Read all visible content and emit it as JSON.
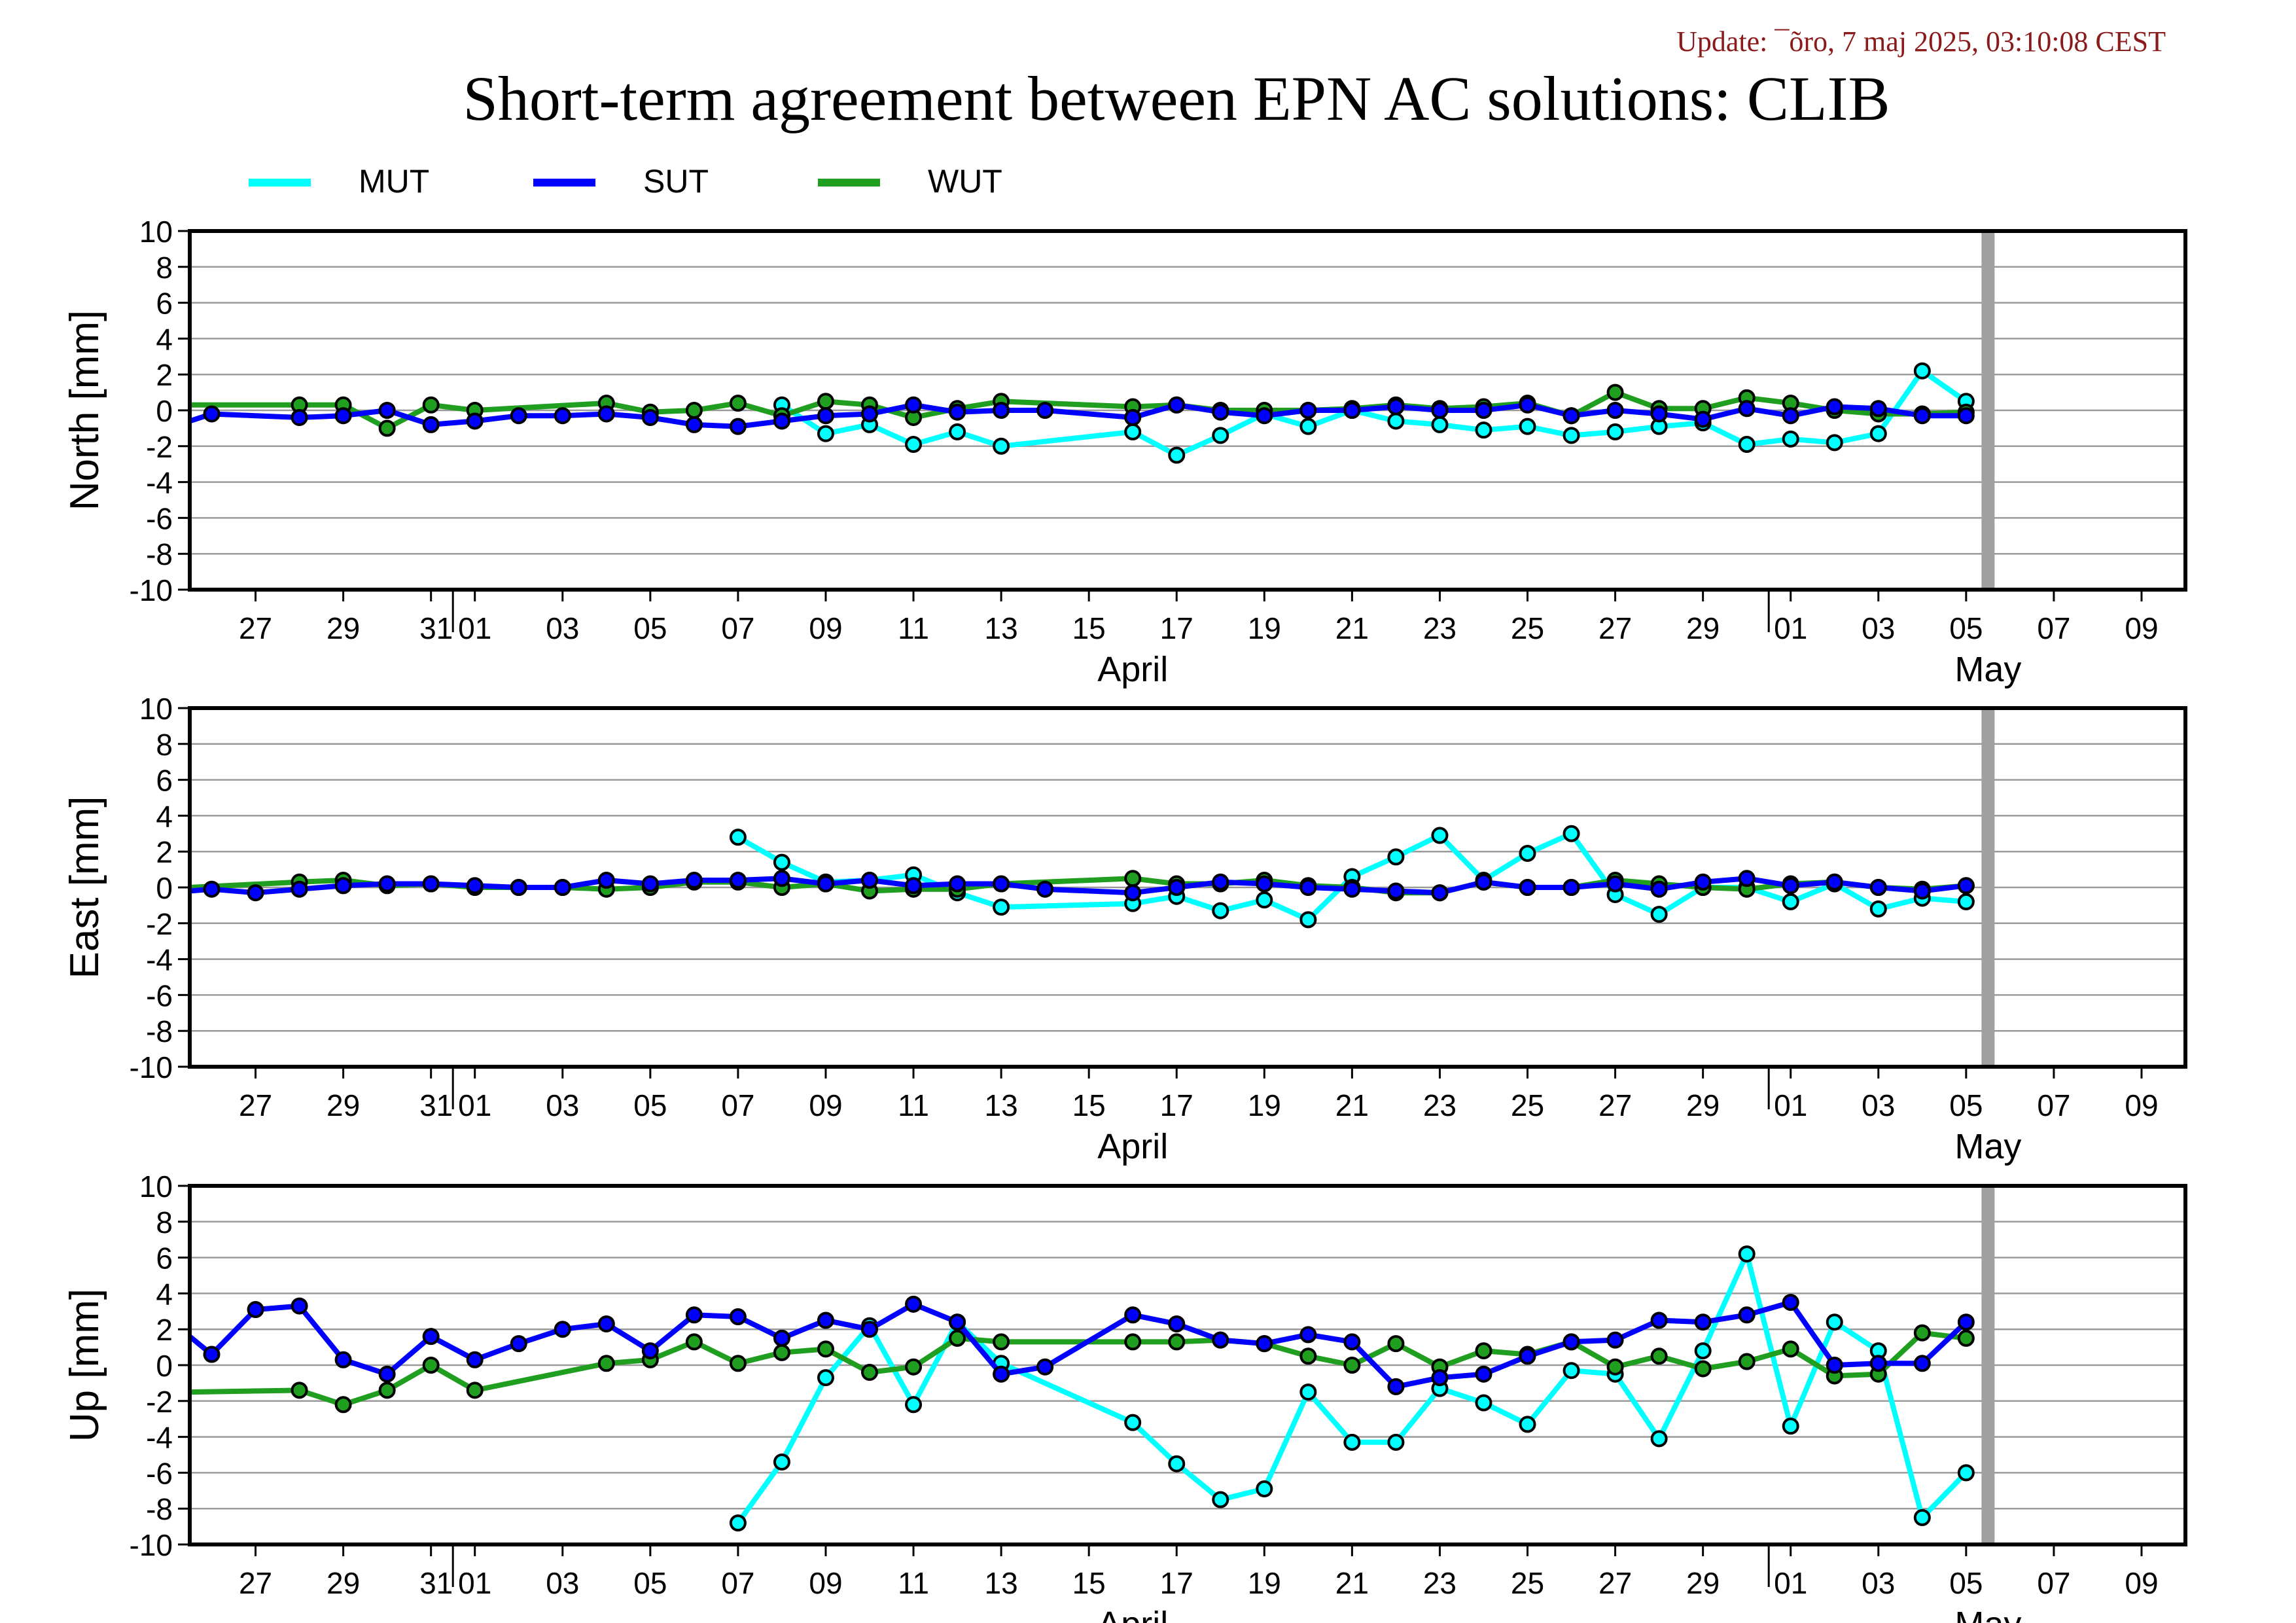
{
  "update_text": "Update: ¯õro, 7 maj 2025, 03:10:08 CEST",
  "title": "Short-term agreement between EPN AC solutions: CLIB",
  "colors": {
    "MUT": "#00ffff",
    "SUT": "#0000ff",
    "WUT": "#1f9e1f",
    "update": "#8b1a1a",
    "now_bar": "#a0a0a0"
  },
  "legend": [
    "MUT",
    "SUT",
    "WUT"
  ],
  "x_axis": {
    "ticks": [
      {
        "day": 27,
        "label": "27"
      },
      {
        "day": 29,
        "label": "29"
      },
      {
        "day": 31,
        "label": "31"
      },
      {
        "day": 32,
        "label": "01"
      },
      {
        "day": 34,
        "label": "03"
      },
      {
        "day": 36,
        "label": "05"
      },
      {
        "day": 38,
        "label": "07"
      },
      {
        "day": 40,
        "label": "09"
      },
      {
        "day": 42,
        "label": "11"
      },
      {
        "day": 44,
        "label": "13"
      },
      {
        "day": 46,
        "label": "15"
      },
      {
        "day": 48,
        "label": "17"
      },
      {
        "day": 50,
        "label": "19"
      },
      {
        "day": 52,
        "label": "21"
      },
      {
        "day": 54,
        "label": "23"
      },
      {
        "day": 56,
        "label": "25"
      },
      {
        "day": 58,
        "label": "27"
      },
      {
        "day": 60,
        "label": "29"
      },
      {
        "day": 62,
        "label": "01"
      },
      {
        "day": 64,
        "label": "03"
      },
      {
        "day": 66,
        "label": "05"
      },
      {
        "day": 68,
        "label": "07"
      },
      {
        "day": 70,
        "label": "09"
      }
    ],
    "month_labels": [
      {
        "day": 47,
        "label": "April"
      },
      {
        "day": 66.5,
        "label": "May"
      }
    ],
    "month_boundaries": [
      31.5,
      61.5
    ],
    "range": [
      25.5,
      71
    ],
    "now_day": 66.5,
    "note": "x values are day numbers counted from 1 March 2025 (32 = 01 April, 62 = 01 May)"
  },
  "chart_data": [
    {
      "type": "line",
      "ylabel": "North [mm]",
      "ylim": [
        -10,
        10
      ],
      "yticks": [
        10,
        8,
        6,
        4,
        2,
        0,
        -2,
        -4,
        -6,
        -8,
        -10
      ],
      "series": [
        {
          "name": "MUT",
          "x": [
            39,
            40,
            41,
            42,
            43,
            44,
            47,
            48,
            49,
            50,
            51,
            52,
            53,
            54,
            55,
            56,
            57,
            58,
            59,
            60,
            61,
            62,
            63,
            64,
            65,
            66
          ],
          "values": [
            0.3,
            -1.3,
            -0.8,
            -1.9,
            -1.2,
            -2.0,
            -1.2,
            -2.5,
            -1.4,
            -0.2,
            -0.9,
            0.0,
            -0.6,
            -0.8,
            -1.1,
            -0.9,
            -1.4,
            -1.2,
            -0.9,
            -0.7,
            -1.9,
            -1.6,
            -1.8,
            -1.3,
            2.2,
            0.5
          ]
        },
        {
          "name": "SUT",
          "x": [
            25.5,
            26,
            28,
            29,
            30,
            31,
            32,
            33,
            34,
            35,
            36,
            37,
            38,
            39,
            40,
            41,
            42,
            43,
            44,
            45,
            47,
            48,
            49,
            50,
            51,
            52,
            53,
            54,
            55,
            56,
            57,
            58,
            59,
            60,
            61,
            62,
            63,
            64,
            65,
            66
          ],
          "values": [
            -0.6,
            -0.2,
            -0.4,
            -0.3,
            0.0,
            -0.8,
            -0.6,
            -0.3,
            -0.3,
            -0.2,
            -0.4,
            -0.8,
            -0.9,
            -0.6,
            -0.3,
            -0.2,
            0.3,
            -0.1,
            0.0,
            0.0,
            -0.4,
            0.3,
            -0.1,
            -0.3,
            0.0,
            0.0,
            0.2,
            0.0,
            0.0,
            0.3,
            -0.3,
            0.0,
            -0.2,
            -0.5,
            0.1,
            -0.3,
            0.2,
            0.1,
            -0.3,
            -0.3
          ]
        },
        {
          "name": "WUT",
          "x": [
            25.5,
            28,
            29,
            30,
            31,
            32,
            35,
            36,
            37,
            38,
            39,
            40,
            41,
            42,
            43,
            44,
            47,
            48,
            49,
            50,
            51,
            52,
            53,
            54,
            55,
            56,
            57,
            58,
            59,
            60,
            61,
            62,
            63,
            64,
            65,
            66
          ],
          "values": [
            0.3,
            0.3,
            0.3,
            -1.0,
            0.3,
            0.0,
            0.4,
            -0.1,
            0.0,
            0.4,
            -0.3,
            0.5,
            0.3,
            -0.4,
            0.1,
            0.5,
            0.2,
            0.3,
            0.0,
            0.0,
            0.0,
            0.1,
            0.3,
            0.1,
            0.2,
            0.4,
            -0.3,
            1.0,
            0.1,
            0.1,
            0.7,
            0.4,
            0.0,
            -0.2,
            -0.2,
            -0.1
          ]
        }
      ]
    },
    {
      "type": "line",
      "ylabel": "East [mm]",
      "ylim": [
        -10,
        10
      ],
      "yticks": [
        10,
        8,
        6,
        4,
        2,
        0,
        -2,
        -4,
        -6,
        -8,
        -10
      ],
      "series": [
        {
          "name": "MUT",
          "x": [
            38,
            39,
            40,
            41,
            42,
            43,
            44,
            47,
            48,
            49,
            50,
            51,
            52,
            53,
            54,
            55,
            56,
            57,
            58,
            59,
            60,
            61,
            62,
            63,
            64,
            65,
            66
          ],
          "values": [
            2.8,
            1.4,
            0.3,
            0.4,
            0.7,
            -0.3,
            -1.1,
            -0.9,
            -0.5,
            -1.3,
            -0.7,
            -1.8,
            0.6,
            1.7,
            2.9,
            0.4,
            1.9,
            3.0,
            -0.4,
            -1.5,
            0.0,
            0.0,
            -0.8,
            0.2,
            -1.2,
            -0.6,
            -0.8
          ]
        },
        {
          "name": "SUT",
          "x": [
            25.5,
            26,
            27,
            28,
            29,
            30,
            31,
            32,
            33,
            34,
            35,
            36,
            37,
            38,
            39,
            40,
            41,
            42,
            43,
            44,
            45,
            47,
            48,
            49,
            50,
            51,
            52,
            53,
            54,
            55,
            56,
            57,
            58,
            59,
            60,
            61,
            62,
            63,
            64,
            65,
            66
          ],
          "values": [
            -0.2,
            -0.1,
            -0.3,
            -0.1,
            0.1,
            0.2,
            0.2,
            0.1,
            0.0,
            0.0,
            0.4,
            0.2,
            0.4,
            0.4,
            0.5,
            0.2,
            0.4,
            0.1,
            0.2,
            0.2,
            -0.1,
            -0.3,
            0.0,
            0.3,
            0.2,
            0.0,
            -0.1,
            -0.2,
            -0.3,
            0.3,
            0.0,
            0.0,
            0.2,
            -0.1,
            0.3,
            0.5,
            0.1,
            0.3,
            0.0,
            -0.2,
            0.1
          ]
        },
        {
          "name": "WUT",
          "x": [
            25.5,
            28,
            29,
            30,
            31,
            32,
            33,
            34,
            35,
            36,
            37,
            38,
            39,
            40,
            41,
            42,
            43,
            44,
            47,
            48,
            49,
            50,
            51,
            52,
            53,
            54,
            55,
            56,
            57,
            58,
            59,
            60,
            61,
            62,
            63,
            64,
            65,
            66
          ],
          "values": [
            0.0,
            0.3,
            0.4,
            0.1,
            0.2,
            0.0,
            0.0,
            0.0,
            -0.1,
            0.0,
            0.3,
            0.3,
            0.0,
            0.2,
            -0.2,
            -0.1,
            -0.1,
            0.2,
            0.5,
            0.2,
            0.2,
            0.4,
            0.1,
            0.0,
            -0.3,
            -0.3,
            0.3,
            0.0,
            0.0,
            0.4,
            0.2,
            0.0,
            -0.1,
            0.2,
            0.3,
            0.0,
            -0.1,
            0.1
          ]
        }
      ]
    },
    {
      "type": "line",
      "ylabel": "Up [mm]",
      "ylim": [
        -10,
        10
      ],
      "yticks": [
        10,
        8,
        6,
        4,
        2,
        0,
        -2,
        -4,
        -6,
        -8,
        -10
      ],
      "series": [
        {
          "name": "MUT",
          "x": [
            38,
            39,
            40,
            41,
            42,
            43,
            44,
            47,
            48,
            49,
            50,
            51,
            52,
            53,
            54,
            55,
            56,
            57,
            58,
            59,
            60,
            61,
            62,
            63,
            64,
            65,
            66
          ],
          "values": [
            -8.8,
            -5.4,
            -0.7,
            2.2,
            -2.2,
            2.4,
            0.1,
            -3.2,
            -5.5,
            -7.5,
            -6.9,
            -1.5,
            -4.3,
            -4.3,
            -1.3,
            -2.1,
            -3.3,
            -0.3,
            -0.5,
            -4.1,
            0.8,
            6.2,
            -3.4,
            2.4,
            0.8,
            -8.5,
            -6.0
          ]
        },
        {
          "name": "SUT",
          "x": [
            25.5,
            26,
            27,
            28,
            29,
            30,
            31,
            32,
            33,
            34,
            35,
            36,
            37,
            38,
            39,
            40,
            41,
            42,
            43,
            44,
            45,
            47,
            48,
            49,
            50,
            51,
            52,
            53,
            54,
            55,
            56,
            57,
            58,
            59,
            60,
            61,
            62,
            63,
            64,
            65,
            66
          ],
          "values": [
            1.6,
            0.6,
            3.1,
            3.3,
            0.3,
            -0.5,
            1.6,
            0.3,
            1.2,
            2.0,
            2.3,
            0.8,
            2.8,
            2.7,
            1.5,
            2.5,
            2.0,
            3.4,
            2.4,
            -0.5,
            -0.1,
            2.8,
            2.3,
            1.4,
            1.2,
            1.7,
            1.3,
            -1.2,
            -0.7,
            -0.5,
            0.5,
            1.3,
            1.4,
            2.5,
            2.4,
            2.8,
            3.5,
            0.0,
            0.1,
            0.1,
            2.4
          ]
        },
        {
          "name": "WUT",
          "x": [
            25.5,
            28,
            29,
            30,
            31,
            32,
            35,
            36,
            37,
            38,
            39,
            40,
            41,
            42,
            43,
            44,
            47,
            48,
            49,
            50,
            51,
            52,
            53,
            54,
            55,
            56,
            57,
            58,
            59,
            60,
            61,
            62,
            63,
            64,
            65,
            66
          ],
          "values": [
            -1.5,
            -1.4,
            -2.2,
            -1.4,
            0.0,
            -1.4,
            0.1,
            0.3,
            1.3,
            0.1,
            0.7,
            0.9,
            -0.4,
            -0.1,
            1.5,
            1.3,
            1.3,
            1.3,
            1.4,
            1.2,
            0.5,
            0.0,
            1.2,
            -0.1,
            0.8,
            0.6,
            1.3,
            -0.1,
            0.5,
            -0.2,
            0.2,
            0.9,
            -0.6,
            -0.5,
            1.8,
            1.5
          ]
        }
      ]
    }
  ]
}
